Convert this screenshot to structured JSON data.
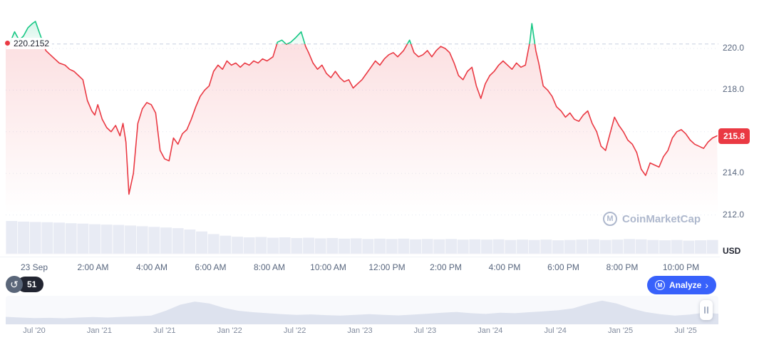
{
  "chart": {
    "open_price_label": "220.2152",
    "open_price": 220.2152,
    "current_price_label": "215.8",
    "current_price": 215.8,
    "currency": "USD",
    "y_axis_labels": [
      {
        "value": 220,
        "label": "220.0"
      },
      {
        "value": 218,
        "label": "218.0"
      },
      {
        "value": 214,
        "label": "214.0"
      },
      {
        "value": 212,
        "label": "212.0"
      }
    ],
    "colors": {
      "up": "#16c784",
      "down": "#ea3943",
      "accent": "#3861fb"
    }
  },
  "chart_data": {
    "type": "line",
    "title": "",
    "x_unit": "hour_of_day",
    "x_range": [
      0,
      24
    ],
    "y_range": [
      211.5,
      221.8
    ],
    "open_price": 220.2152,
    "current_price": 215.8,
    "x_tick_labels": [
      "23 Sep",
      "2:00 AM",
      "4:00 AM",
      "6:00 AM",
      "8:00 AM",
      "10:00 AM",
      "12:00 PM",
      "2:00 PM",
      "4:00 PM",
      "6:00 PM",
      "8:00 PM",
      "10:00 PM"
    ],
    "y_tick_labels": [
      "220.0",
      "218.0",
      "215.8",
      "214.0",
      "212.0"
    ],
    "y_gridlines": [
      220,
      218,
      216,
      214,
      212
    ],
    "legend": [],
    "series": [
      {
        "name": "price_usd",
        "points": [
          [
            0,
            220.0
          ],
          [
            0.15,
            220.3
          ],
          [
            0.3,
            220.8
          ],
          [
            0.45,
            220.4
          ],
          [
            0.6,
            220.6
          ],
          [
            0.75,
            221.0
          ],
          [
            0.9,
            221.2
          ],
          [
            1.0,
            221.3
          ],
          [
            1.1,
            220.9
          ],
          [
            1.2,
            220.5
          ],
          [
            1.35,
            219.9
          ],
          [
            1.5,
            219.7
          ],
          [
            1.65,
            219.5
          ],
          [
            1.8,
            219.3
          ],
          [
            2.0,
            219.2
          ],
          [
            2.15,
            219.0
          ],
          [
            2.3,
            218.9
          ],
          [
            2.45,
            218.7
          ],
          [
            2.6,
            218.5
          ],
          [
            2.75,
            217.5
          ],
          [
            2.9,
            217.0
          ],
          [
            3.0,
            216.8
          ],
          [
            3.1,
            217.3
          ],
          [
            3.25,
            216.6
          ],
          [
            3.4,
            216.2
          ],
          [
            3.55,
            216.0
          ],
          [
            3.7,
            216.3
          ],
          [
            3.85,
            215.8
          ],
          [
            3.95,
            216.4
          ],
          [
            4.05,
            215.5
          ],
          [
            4.15,
            213.0
          ],
          [
            4.3,
            214.0
          ],
          [
            4.45,
            216.4
          ],
          [
            4.6,
            217.1
          ],
          [
            4.75,
            217.4
          ],
          [
            4.9,
            217.3
          ],
          [
            5.05,
            216.9
          ],
          [
            5.2,
            215.1
          ],
          [
            5.35,
            214.7
          ],
          [
            5.5,
            214.6
          ],
          [
            5.65,
            215.7
          ],
          [
            5.8,
            215.4
          ],
          [
            5.95,
            215.9
          ],
          [
            6.1,
            216.1
          ],
          [
            6.25,
            216.6
          ],
          [
            6.4,
            217.2
          ],
          [
            6.55,
            217.7
          ],
          [
            6.7,
            218.0
          ],
          [
            6.85,
            218.2
          ],
          [
            7.0,
            218.9
          ],
          [
            7.15,
            219.2
          ],
          [
            7.3,
            219.0
          ],
          [
            7.45,
            219.4
          ],
          [
            7.6,
            219.2
          ],
          [
            7.75,
            219.3
          ],
          [
            7.9,
            219.1
          ],
          [
            8.05,
            219.3
          ],
          [
            8.2,
            219.2
          ],
          [
            8.35,
            219.4
          ],
          [
            8.5,
            219.3
          ],
          [
            8.65,
            219.5
          ],
          [
            8.8,
            219.4
          ],
          [
            9.0,
            219.6
          ],
          [
            9.15,
            220.3
          ],
          [
            9.3,
            220.4
          ],
          [
            9.45,
            220.2
          ],
          [
            9.6,
            220.3
          ],
          [
            9.75,
            220.5
          ],
          [
            9.95,
            220.8
          ],
          [
            10.1,
            220.1
          ],
          [
            10.2,
            219.8
          ],
          [
            10.35,
            219.3
          ],
          [
            10.5,
            219.0
          ],
          [
            10.65,
            219.2
          ],
          [
            10.8,
            218.8
          ],
          [
            10.95,
            218.6
          ],
          [
            11.1,
            218.9
          ],
          [
            11.25,
            218.6
          ],
          [
            11.4,
            218.4
          ],
          [
            11.55,
            218.5
          ],
          [
            11.7,
            218.1
          ],
          [
            11.85,
            218.3
          ],
          [
            12.0,
            218.5
          ],
          [
            12.15,
            218.8
          ],
          [
            12.3,
            219.1
          ],
          [
            12.45,
            219.4
          ],
          [
            12.6,
            219.2
          ],
          [
            12.75,
            219.5
          ],
          [
            12.9,
            219.7
          ],
          [
            13.05,
            219.8
          ],
          [
            13.2,
            219.6
          ],
          [
            13.4,
            219.9
          ],
          [
            13.6,
            220.4
          ],
          [
            13.75,
            219.8
          ],
          [
            13.9,
            219.6
          ],
          [
            14.05,
            219.7
          ],
          [
            14.2,
            219.9
          ],
          [
            14.35,
            219.6
          ],
          [
            14.5,
            219.9
          ],
          [
            14.65,
            220.1
          ],
          [
            14.8,
            220.0
          ],
          [
            14.95,
            219.8
          ],
          [
            15.1,
            219.3
          ],
          [
            15.25,
            218.7
          ],
          [
            15.4,
            218.5
          ],
          [
            15.55,
            218.9
          ],
          [
            15.7,
            219.1
          ],
          [
            15.85,
            218.2
          ],
          [
            16.0,
            217.6
          ],
          [
            16.15,
            218.3
          ],
          [
            16.3,
            218.7
          ],
          [
            16.45,
            218.9
          ],
          [
            16.6,
            219.2
          ],
          [
            16.75,
            219.4
          ],
          [
            16.9,
            219.2
          ],
          [
            17.05,
            219.0
          ],
          [
            17.2,
            219.3
          ],
          [
            17.35,
            219.1
          ],
          [
            17.5,
            219.2
          ],
          [
            17.65,
            220.3
          ],
          [
            17.72,
            221.2
          ],
          [
            17.85,
            219.9
          ],
          [
            17.95,
            219.3
          ],
          [
            18.1,
            218.2
          ],
          [
            18.25,
            218.0
          ],
          [
            18.4,
            217.7
          ],
          [
            18.55,
            217.2
          ],
          [
            18.7,
            217.0
          ],
          [
            18.85,
            216.7
          ],
          [
            19.0,
            216.9
          ],
          [
            19.15,
            216.6
          ],
          [
            19.3,
            216.5
          ],
          [
            19.45,
            216.8
          ],
          [
            19.6,
            217.0
          ],
          [
            19.75,
            216.4
          ],
          [
            19.9,
            216.0
          ],
          [
            20.05,
            215.3
          ],
          [
            20.2,
            215.1
          ],
          [
            20.35,
            215.9
          ],
          [
            20.5,
            216.7
          ],
          [
            20.65,
            216.3
          ],
          [
            20.8,
            216.0
          ],
          [
            20.95,
            215.6
          ],
          [
            21.1,
            215.4
          ],
          [
            21.25,
            215.0
          ],
          [
            21.4,
            214.2
          ],
          [
            21.55,
            213.9
          ],
          [
            21.7,
            214.5
          ],
          [
            21.85,
            214.4
          ],
          [
            22.0,
            214.3
          ],
          [
            22.15,
            214.8
          ],
          [
            22.3,
            215.1
          ],
          [
            22.45,
            215.7
          ],
          [
            22.6,
            216.0
          ],
          [
            22.75,
            216.1
          ],
          [
            22.9,
            215.9
          ],
          [
            23.05,
            215.6
          ],
          [
            23.2,
            215.4
          ],
          [
            23.35,
            215.3
          ],
          [
            23.5,
            215.2
          ],
          [
            23.65,
            215.5
          ],
          [
            23.8,
            215.7
          ],
          [
            23.95,
            215.8
          ]
        ]
      }
    ],
    "volume_relative": [
      1.0,
      0.98,
      0.97,
      0.96,
      0.95,
      0.93,
      0.92,
      0.9,
      0.89,
      0.88,
      0.86,
      0.84,
      0.82,
      0.8,
      0.78,
      0.74,
      0.68,
      0.6,
      0.55,
      0.52,
      0.5,
      0.51,
      0.49,
      0.5,
      0.48,
      0.49,
      0.47,
      0.48,
      0.46,
      0.47,
      0.45,
      0.46,
      0.45,
      0.46,
      0.44,
      0.45,
      0.44,
      0.45,
      0.43,
      0.44,
      0.43,
      0.44,
      0.42,
      0.43,
      0.42,
      0.43,
      0.41,
      0.42,
      0.43,
      0.44,
      0.42,
      0.43,
      0.45,
      0.44,
      0.42,
      0.41,
      0.42,
      0.4,
      0.41,
      0.42
    ]
  },
  "controls": {
    "history_count": "51",
    "analyze_label": "Analyze"
  },
  "icons": {
    "history": "↺",
    "chevron": "›",
    "logo_letter": "M"
  },
  "watermark": {
    "text": "CoinMarketCap"
  },
  "timeline": {
    "labels": [
      "Jul '20",
      "Jan '21",
      "Jul '21",
      "Jan '22",
      "Jul '22",
      "Jan '23",
      "Jul '23",
      "Jan '24",
      "Jul '24",
      "Jan '25",
      "Jul '25"
    ],
    "silhouette": [
      0.25,
      0.22,
      0.2,
      0.21,
      0.19,
      0.22,
      0.24,
      0.22,
      0.25,
      0.27,
      0.3,
      0.5,
      0.75,
      0.88,
      0.8,
      0.62,
      0.5,
      0.44,
      0.4,
      0.36,
      0.33,
      0.35,
      0.32,
      0.3,
      0.33,
      0.36,
      0.33,
      0.31,
      0.34,
      0.38,
      0.42,
      0.45,
      0.4,
      0.37,
      0.42,
      0.4,
      0.44,
      0.48,
      0.52,
      0.6,
      0.78,
      0.92,
      0.8,
      0.6,
      0.45,
      0.36,
      0.3,
      0.34,
      0.42,
      0.38
    ]
  }
}
